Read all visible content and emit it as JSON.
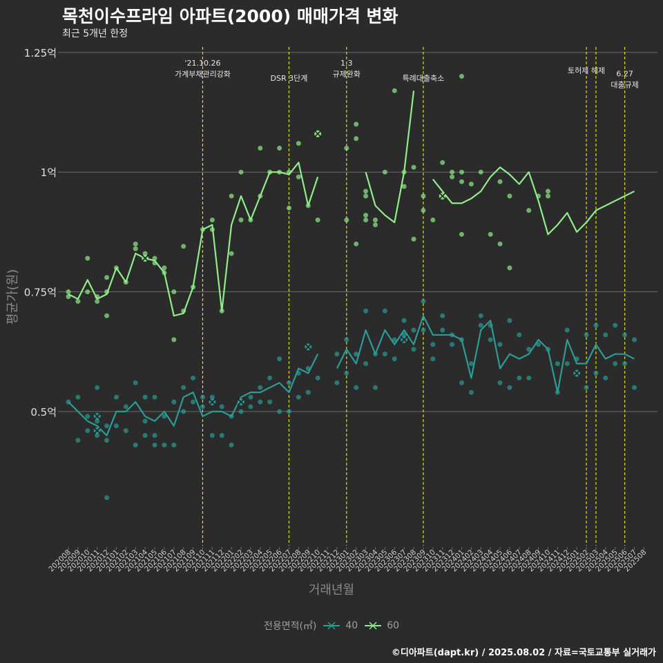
{
  "title": "목천이수프라임 아파트(2000) 매매가격 변화",
  "subtitle": "최근 5개년 한정",
  "caption": "©디아파트(dapt.kr) / 2025.08.02 / 자료=국토교통부 실거래가",
  "legend": {
    "title": "전용면적(㎡)"
  },
  "colors": {
    "s40": "#2a9d96",
    "s60": "#90ee8a",
    "vline": "#dede1c",
    "grid": "#6b6b6b",
    "bg": "#2b2b2b"
  },
  "chart_data": {
    "type": "line",
    "xlabel": "거래년월",
    "ylabel": "평균가(원)",
    "ylim": [
      0.22,
      1.27
    ],
    "yticks": [
      {
        "v": 0.5,
        "label": "0.5억"
      },
      {
        "v": 0.75,
        "label": "0.75억"
      },
      {
        "v": 1.0,
        "label": "1억"
      },
      {
        "v": 1.25,
        "label": "1.25억"
      }
    ],
    "x": [
      "202008",
      "202009",
      "202010",
      "202011",
      "202012",
      "202101",
      "202102",
      "202103",
      "202104",
      "202105",
      "202106",
      "202107",
      "202108",
      "202109",
      "202110",
      "202111",
      "202112",
      "202201",
      "202202",
      "202203",
      "202204",
      "202205",
      "202206",
      "202207",
      "202208",
      "202209",
      "202210",
      "202211",
      "202212",
      "202301",
      "202302",
      "202303",
      "202304",
      "202305",
      "202306",
      "202307",
      "202308",
      "202309",
      "202310",
      "202311",
      "202312",
      "202401",
      "202402",
      "202403",
      "202404",
      "202405",
      "202406",
      "202407",
      "202408",
      "202409",
      "202410",
      "202411",
      "202412",
      "202501",
      "202502",
      "202503",
      "202504",
      "202505",
      "202506",
      "202507",
      "202508"
    ],
    "series": [
      {
        "name": "40",
        "values": [
          0.52,
          0.5,
          0.48,
          0.47,
          0.45,
          0.5,
          0.5,
          0.52,
          0.49,
          0.48,
          0.5,
          0.47,
          0.53,
          0.54,
          0.49,
          0.5,
          0.5,
          0.49,
          0.53,
          0.54,
          0.54,
          0.55,
          0.56,
          0.54,
          0.59,
          0.58,
          0.62,
          null,
          0.59,
          0.63,
          0.6,
          0.67,
          0.62,
          0.67,
          0.64,
          0.67,
          0.64,
          0.7,
          0.66,
          0.66,
          0.66,
          0.65,
          0.57,
          0.67,
          0.69,
          0.59,
          0.62,
          0.61,
          0.62,
          0.65,
          0.63,
          0.54,
          0.65,
          0.6,
          0.6,
          0.64,
          0.61,
          0.62,
          0.62,
          0.61,
          null
        ],
        "points": [
          [
            0,
            0.52
          ],
          [
            1,
            0.53
          ],
          [
            1,
            0.44
          ],
          [
            2,
            0.49
          ],
          [
            2,
            0.46
          ],
          [
            3,
            0.55
          ],
          [
            3,
            0.48
          ],
          [
            3,
            0.45
          ],
          [
            4,
            0.47
          ],
          [
            4,
            0.44
          ],
          [
            4,
            0.32
          ],
          [
            5,
            0.53
          ],
          [
            5,
            0.47
          ],
          [
            6,
            0.51
          ],
          [
            6,
            0.46
          ],
          [
            7,
            0.56
          ],
          [
            7,
            0.43
          ],
          [
            8,
            0.53
          ],
          [
            8,
            0.48
          ],
          [
            8,
            0.45
          ],
          [
            9,
            0.53
          ],
          [
            9,
            0.45
          ],
          [
            9,
            0.43
          ],
          [
            10,
            0.49
          ],
          [
            10,
            0.43
          ],
          [
            11,
            0.52
          ],
          [
            11,
            0.43
          ],
          [
            12,
            0.55
          ],
          [
            12,
            0.5
          ],
          [
            13,
            0.57
          ],
          [
            13,
            0.52
          ],
          [
            14,
            0.53
          ],
          [
            14,
            0.51
          ],
          [
            15,
            0.53
          ],
          [
            15,
            0.45
          ],
          [
            16,
            0.51
          ],
          [
            16,
            0.45
          ],
          [
            17,
            0.49
          ],
          [
            17,
            0.43
          ],
          [
            18,
            0.52
          ],
          [
            18,
            0.5
          ],
          [
            19,
            0.53
          ],
          [
            19,
            0.51
          ],
          [
            20,
            0.55
          ],
          [
            20,
            0.52
          ],
          [
            21,
            0.57
          ],
          [
            21,
            0.52
          ],
          [
            22,
            0.61
          ],
          [
            22,
            0.5
          ],
          [
            23,
            0.56
          ],
          [
            23,
            0.5
          ],
          [
            24,
            0.58
          ],
          [
            24,
            0.53
          ],
          [
            25,
            0.59
          ],
          [
            25,
            0.54
          ],
          [
            26,
            0.57
          ],
          [
            28,
            0.62
          ],
          [
            28,
            0.56
          ],
          [
            29,
            0.65
          ],
          [
            29,
            0.58
          ],
          [
            30,
            0.62
          ],
          [
            30,
            0.55
          ],
          [
            31,
            0.71
          ],
          [
            31,
            0.6
          ],
          [
            32,
            0.62
          ],
          [
            32,
            0.55
          ],
          [
            33,
            0.71
          ],
          [
            33,
            0.62
          ],
          [
            34,
            0.65
          ],
          [
            34,
            0.61
          ],
          [
            35,
            0.69
          ],
          [
            35,
            0.66
          ],
          [
            36,
            0.67
          ],
          [
            36,
            0.63
          ],
          [
            37,
            0.73
          ],
          [
            37,
            0.67
          ],
          [
            38,
            0.64
          ],
          [
            38,
            0.61
          ],
          [
            39,
            0.7
          ],
          [
            39,
            0.67
          ],
          [
            40,
            0.66
          ],
          [
            40,
            0.64
          ],
          [
            41,
            0.65
          ],
          [
            41,
            0.56
          ],
          [
            42,
            0.6
          ],
          [
            42,
            0.54
          ],
          [
            43,
            0.7
          ],
          [
            43,
            0.68
          ],
          [
            44,
            0.68
          ],
          [
            44,
            0.65
          ],
          [
            45,
            0.64
          ],
          [
            45,
            0.56
          ],
          [
            46,
            0.69
          ],
          [
            46,
            0.55
          ],
          [
            47,
            0.66
          ],
          [
            47,
            0.57
          ],
          [
            48,
            0.63
          ],
          [
            48,
            0.57
          ],
          [
            49,
            0.64
          ],
          [
            50,
            0.63
          ],
          [
            51,
            0.6
          ],
          [
            51,
            0.54
          ],
          [
            52,
            0.67
          ],
          [
            52,
            0.6
          ],
          [
            53,
            0.61
          ],
          [
            53,
            0.58
          ],
          [
            54,
            0.66
          ],
          [
            54,
            0.55
          ],
          [
            55,
            0.68
          ],
          [
            55,
            0.58
          ],
          [
            56,
            0.66
          ],
          [
            56,
            0.57
          ],
          [
            57,
            0.68
          ],
          [
            57,
            0.6
          ],
          [
            58,
            0.66
          ],
          [
            58,
            0.6
          ],
          [
            59,
            0.65
          ],
          [
            59,
            0.55
          ]
        ],
        "markers": [
          [
            3,
            0.49
          ],
          [
            3,
            0.46
          ],
          [
            15,
            0.52
          ],
          [
            18,
            0.52
          ],
          [
            25,
            0.635
          ],
          [
            35,
            0.65
          ],
          [
            53,
            0.58
          ]
        ]
      },
      {
        "name": "60",
        "values": [
          0.745,
          0.735,
          0.775,
          0.735,
          0.745,
          0.8,
          0.77,
          0.83,
          0.82,
          0.815,
          0.79,
          0.7,
          0.705,
          0.76,
          0.88,
          0.89,
          0.71,
          0.89,
          0.95,
          0.9,
          0.95,
          1.0,
          1.0,
          0.995,
          1.02,
          0.93,
          0.99,
          null,
          null,
          0.975,
          null,
          1.0,
          0.93,
          0.91,
          0.895,
          1.0,
          1.17,
          null,
          0.985,
          0.96,
          0.935,
          0.935,
          0.945,
          0.96,
          0.99,
          1.01,
          0.995,
          0.975,
          1.0,
          0.94,
          0.87,
          0.89,
          0.915,
          0.875,
          0.895,
          0.92,
          0.93,
          0.94,
          0.95,
          0.96,
          null
        ],
        "points": [
          [
            0,
            0.75
          ],
          [
            0,
            0.74
          ],
          [
            1,
            0.73
          ],
          [
            2,
            0.82
          ],
          [
            2,
            0.75
          ],
          [
            3,
            0.74
          ],
          [
            3,
            0.73
          ],
          [
            4,
            0.78
          ],
          [
            4,
            0.75
          ],
          [
            4,
            0.7
          ],
          [
            5,
            0.8
          ],
          [
            6,
            0.77
          ],
          [
            7,
            0.85
          ],
          [
            7,
            0.84
          ],
          [
            8,
            0.83
          ],
          [
            9,
            0.82
          ],
          [
            9,
            0.81
          ],
          [
            10,
            0.8
          ],
          [
            10,
            0.79
          ],
          [
            11,
            0.75
          ],
          [
            11,
            0.65
          ],
          [
            12,
            0.845
          ],
          [
            12,
            0.71
          ],
          [
            13,
            0.76
          ],
          [
            14,
            0.88
          ],
          [
            15,
            0.9
          ],
          [
            15,
            0.88
          ],
          [
            16,
            0.71
          ],
          [
            17,
            0.95
          ],
          [
            17,
            0.83
          ],
          [
            18,
            1.0
          ],
          [
            18,
            0.9
          ],
          [
            19,
            0.9
          ],
          [
            20,
            1.05
          ],
          [
            20,
            0.95
          ],
          [
            21,
            1.0
          ],
          [
            22,
            1.05
          ],
          [
            22,
            1.0
          ],
          [
            23,
            1.0
          ],
          [
            23,
            0.925
          ],
          [
            24,
            1.06
          ],
          [
            24,
            0.99
          ],
          [
            25,
            0.93
          ],
          [
            26,
            1.08
          ],
          [
            26,
            0.9
          ],
          [
            29,
            1.05
          ],
          [
            29,
            0.9
          ],
          [
            30,
            1.1
          ],
          [
            30,
            1.07
          ],
          [
            30,
            0.85
          ],
          [
            31,
            0.96
          ],
          [
            31,
            0.95
          ],
          [
            31,
            0.91
          ],
          [
            31,
            0.9
          ],
          [
            32,
            0.9
          ],
          [
            32,
            0.89
          ],
          [
            33,
            1.0
          ],
          [
            34,
            1.17
          ],
          [
            35,
            1.0
          ],
          [
            35,
            0.97
          ],
          [
            36,
            1.01
          ],
          [
            36,
            0.86
          ],
          [
            37,
            0.95
          ],
          [
            37,
            0.92
          ],
          [
            38,
            0.9
          ],
          [
            39,
            1.02
          ],
          [
            40,
            1.0
          ],
          [
            40,
            0.99
          ],
          [
            41,
            1.2
          ],
          [
            41,
            1.0
          ],
          [
            41,
            0.98
          ],
          [
            41,
            0.87
          ],
          [
            42,
            0.975
          ],
          [
            43,
            1.0
          ],
          [
            44,
            0.87
          ],
          [
            45,
            0.98
          ],
          [
            45,
            0.85
          ],
          [
            46,
            0.95
          ],
          [
            46,
            0.8
          ],
          [
            48,
            0.92
          ],
          [
            49,
            0.95
          ],
          [
            50,
            0.96
          ],
          [
            50,
            0.95
          ]
        ],
        "markers": [
          [
            8,
            0.82
          ],
          [
            26,
            1.08
          ],
          [
            39,
            0.95
          ]
        ]
      }
    ],
    "events": [
      {
        "idx": 14,
        "lines": [
          "'21.10.26",
          "가계부채관리강화"
        ],
        "row": 1
      },
      {
        "idx": 23,
        "lines": [
          "DSR 3단계"
        ],
        "row": 2
      },
      {
        "idx": 29,
        "lines": [
          "1.3",
          "규제완화"
        ],
        "row": 1
      },
      {
        "idx": 37,
        "lines": [
          "특례대출축소"
        ],
        "row": 2
      },
      {
        "idx": 54,
        "lines": [
          "토허제 해제"
        ],
        "row": 1.5
      },
      {
        "idx": 55,
        "lines": [],
        "row": 1
      },
      {
        "idx": 58,
        "lines": [
          "6.27",
          "대출규제"
        ],
        "row": 1.7
      }
    ]
  }
}
